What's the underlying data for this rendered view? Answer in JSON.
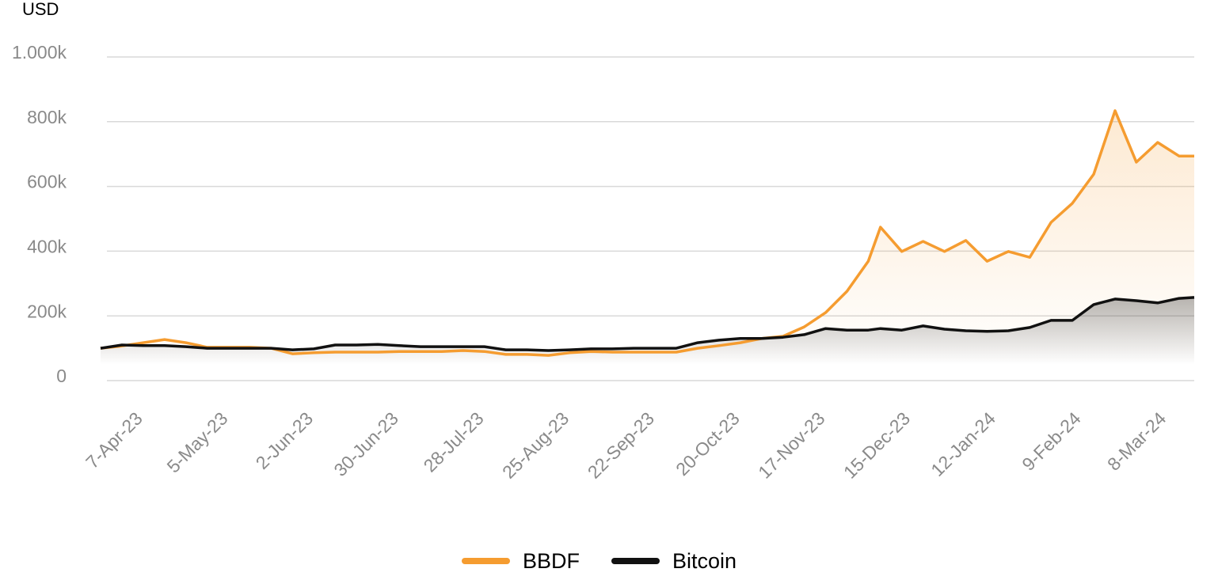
{
  "chart_data": {
    "type": "line",
    "y_label": "USD",
    "x": [
      "2023-03-25",
      "2023-04-01",
      "2023-04-08",
      "2023-04-15",
      "2023-04-22",
      "2023-04-29",
      "2023-05-06",
      "2023-05-13",
      "2023-05-20",
      "2023-05-27",
      "2023-06-03",
      "2023-06-10",
      "2023-06-17",
      "2023-06-24",
      "2023-07-01",
      "2023-07-08",
      "2023-07-15",
      "2023-07-22",
      "2023-07-29",
      "2023-08-05",
      "2023-08-12",
      "2023-08-19",
      "2023-08-26",
      "2023-09-02",
      "2023-09-09",
      "2023-09-16",
      "2023-09-23",
      "2023-09-30",
      "2023-10-07",
      "2023-10-14",
      "2023-10-21",
      "2023-10-28",
      "2023-11-04",
      "2023-11-11",
      "2023-11-18",
      "2023-11-25",
      "2023-12-02",
      "2023-12-06",
      "2023-12-13",
      "2023-12-20",
      "2023-12-27",
      "2024-01-03",
      "2024-01-10",
      "2024-01-17",
      "2024-01-24",
      "2024-01-31",
      "2024-02-07",
      "2024-02-14",
      "2024-02-21",
      "2024-02-28",
      "2024-03-06",
      "2024-03-13",
      "2024-03-18"
    ],
    "series": [
      {
        "name": "BBDF",
        "color": "#f59c30",
        "values": [
          100000,
          107000,
          117000,
          127000,
          117000,
          103000,
          103000,
          103000,
          100000,
          83000,
          86000,
          88000,
          88000,
          88000,
          90000,
          90000,
          90000,
          93000,
          90000,
          81000,
          81000,
          78000,
          86000,
          90000,
          88000,
          88000,
          88000,
          88000,
          100000,
          108000,
          117000,
          130000,
          137000,
          166000,
          210000,
          276000,
          369000,
          474000,
          399000,
          430000,
          399000,
          433000,
          369000,
          399000,
          381000,
          489000,
          548000,
          638000,
          834000,
          675000,
          736000,
          694000,
          694000
        ]
      },
      {
        "name": "Bitcoin",
        "color": "#111111",
        "values": [
          100000,
          110000,
          108000,
          108000,
          105000,
          100000,
          100000,
          100000,
          100000,
          95000,
          98000,
          110000,
          110000,
          112000,
          108000,
          105000,
          105000,
          105000,
          105000,
          95000,
          95000,
          93000,
          95000,
          98000,
          98000,
          100000,
          100000,
          100000,
          117000,
          125000,
          130000,
          130000,
          134000,
          142000,
          161000,
          156000,
          156000,
          161000,
          156000,
          169000,
          159000,
          154000,
          152000,
          154000,
          164000,
          186000,
          186000,
          235000,
          252000,
          247000,
          240000,
          254000,
          257000
        ]
      }
    ],
    "xlim": [
      "2023-03-25",
      "2024-03-18"
    ],
    "xticks": [
      {
        "value": "2023-04-07",
        "label": "7-Apr-23"
      },
      {
        "value": "2023-05-05",
        "label": "5-May-23"
      },
      {
        "value": "2023-06-02",
        "label": "2-Jun-23"
      },
      {
        "value": "2023-06-30",
        "label": "30-Jun-23"
      },
      {
        "value": "2023-07-28",
        "label": "28-Jul-23"
      },
      {
        "value": "2023-08-25",
        "label": "25-Aug-23"
      },
      {
        "value": "2023-09-22",
        "label": "22-Sep-23"
      },
      {
        "value": "2023-10-20",
        "label": "20-Oct-23"
      },
      {
        "value": "2023-11-17",
        "label": "17-Nov-23"
      },
      {
        "value": "2023-12-15",
        "label": "15-Dec-23"
      },
      {
        "value": "2024-01-12",
        "label": "12-Jan-24"
      },
      {
        "value": "2024-02-09",
        "label": "9-Feb-24"
      },
      {
        "value": "2024-03-08",
        "label": "8-Mar-24"
      }
    ],
    "ylim": [
      0,
      1000000
    ],
    "yticks": [
      0,
      {
        "value": 200000,
        "label": "200k"
      },
      {
        "value": 400000,
        "label": "400k"
      },
      {
        "value": 600000,
        "label": "600k"
      },
      {
        "value": 800000,
        "label": "800k"
      },
      {
        "value": 1000000,
        "label": "1.000k"
      }
    ],
    "grid": true,
    "legend": "bottom",
    "area_fill": true
  }
}
